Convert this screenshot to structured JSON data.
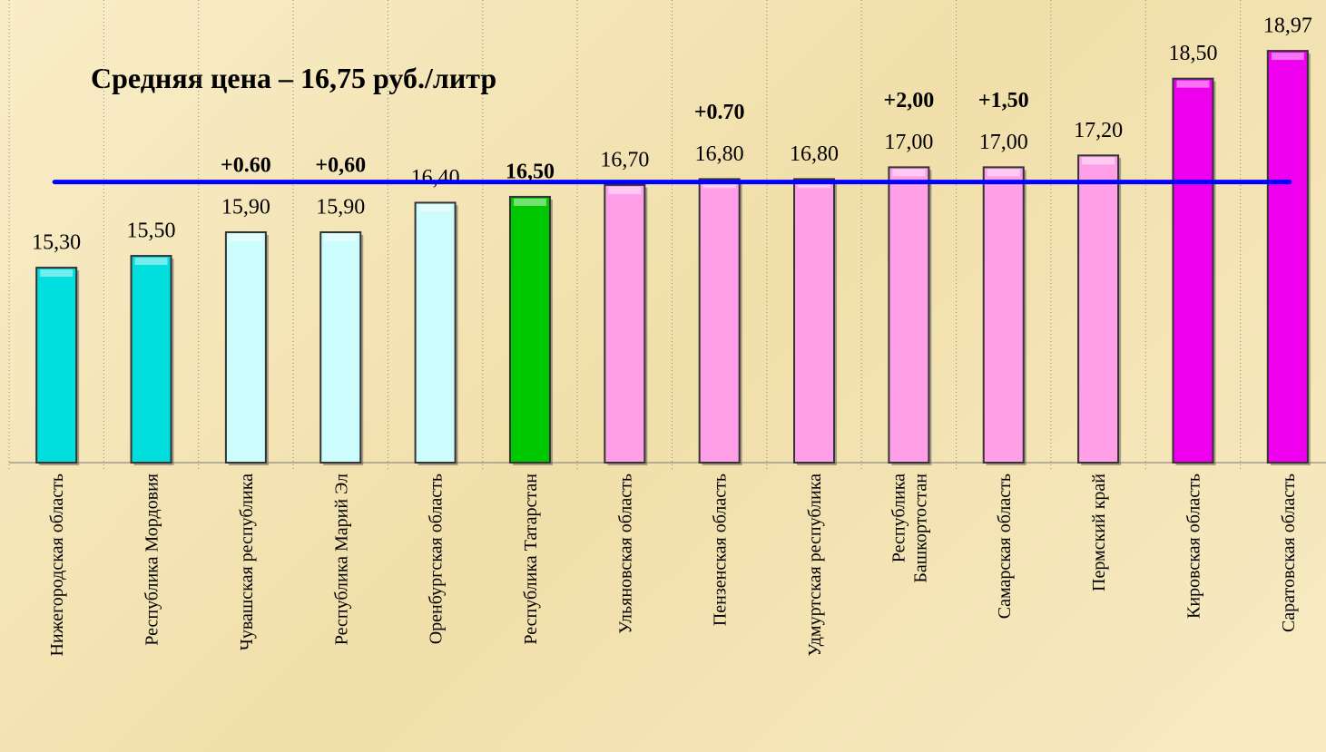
{
  "chart_data": {
    "type": "bar",
    "subtitle": "Средняя цена – 16,75 руб./литр",
    "average": 16.75,
    "average_color": "#0000ff",
    "categories": [
      "Нижегородская область",
      "Республика Мордовия",
      "Чувашская республика",
      "Республика Марий Эл",
      "Оренбургская область",
      "Республика  Татарстан",
      "Ульяновская область",
      "Пензенская область",
      "Удмуртская республика",
      [
        "Республика",
        "Башкортостан"
      ],
      "Самарская область",
      "Пермский край",
      "Кировская область",
      "Саратовская область"
    ],
    "values": [
      15.3,
      15.5,
      15.9,
      15.9,
      16.4,
      16.5,
      16.7,
      16.8,
      16.8,
      17.0,
      17.0,
      17.2,
      18.5,
      18.97
    ],
    "value_labels": [
      "15,30",
      "15,50",
      "15,90",
      "15,90",
      "16,40",
      "16,50",
      "16,70",
      "16,80",
      "16,80",
      "17,00",
      "17,00",
      "17,20",
      "18,50",
      "18,97"
    ],
    "colors": [
      "#00dede",
      "#00dede",
      "#ccfcfc",
      "#ccfcfc",
      "#ccfcfc",
      "#00c800",
      "#ff9fe8",
      "#ff9fe8",
      "#ff9fe8",
      "#ff9fe8",
      "#ff9fe8",
      "#ff9fe8",
      "#ee00ee",
      "#ee00ee"
    ],
    "change_labels": [
      null,
      null,
      "+0.60",
      "+0,60",
      null,
      null,
      null,
      "+0.70",
      null,
      "+2,00",
      "+1,50",
      null,
      null,
      null
    ],
    "change_color": "#ff0000",
    "ylim": [
      12,
      20
    ]
  }
}
